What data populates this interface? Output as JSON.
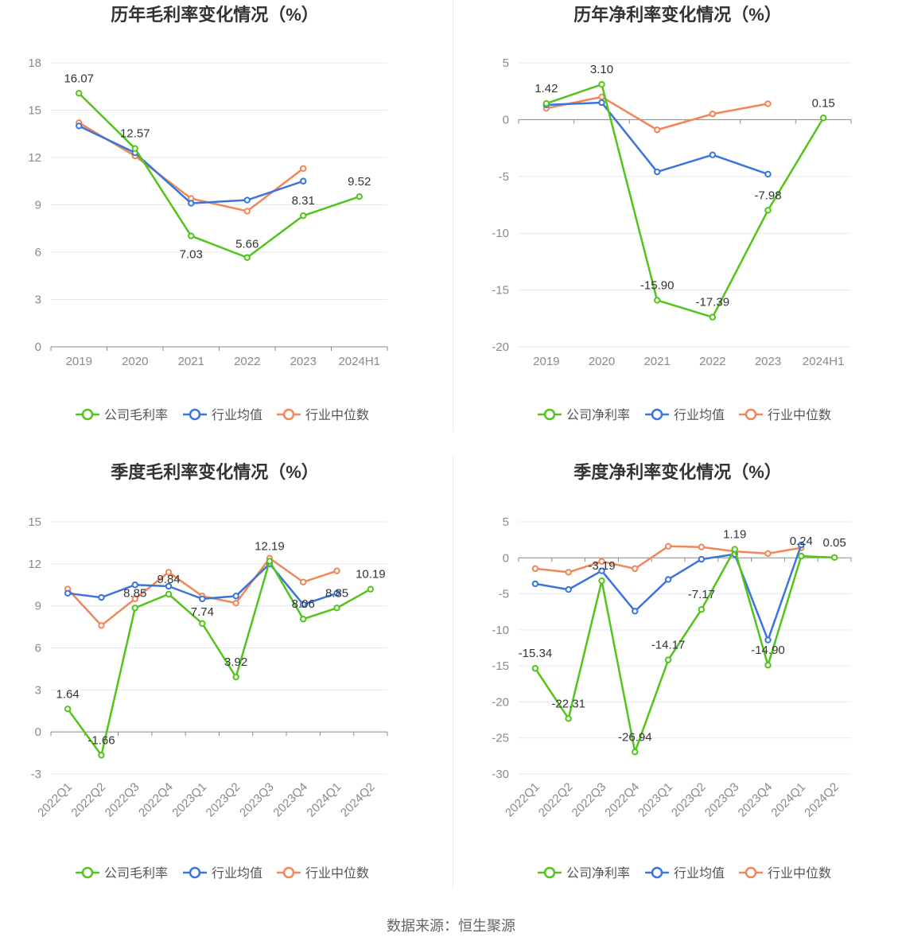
{
  "source_text": "数据来源：恒生聚源",
  "colors": {
    "company": "#52c41a",
    "avg": "#3b74db",
    "median": "#f0865a",
    "grid": "#e6e9f0",
    "axis": "#888888"
  },
  "chart_data": [
    {
      "type": "line",
      "title": "历年毛利率变化情况（%）",
      "categories": [
        "2019",
        "2020",
        "2021",
        "2022",
        "2023",
        "2024H1"
      ],
      "ylim": [
        0,
        18
      ],
      "yticks": [
        0,
        3,
        6,
        9,
        12,
        15,
        18
      ],
      "rotate_x": false,
      "legend_position": "bottom",
      "series": [
        {
          "name": "公司毛利率",
          "key": "company",
          "values": [
            16.07,
            12.57,
            7.03,
            5.66,
            8.31,
            9.52
          ],
          "labels": true
        },
        {
          "name": "行业均值",
          "key": "avg",
          "values": [
            14.0,
            12.3,
            9.1,
            9.3,
            10.5,
            null
          ],
          "labels": false
        },
        {
          "name": "行业中位数",
          "key": "median",
          "values": [
            14.2,
            12.1,
            9.4,
            8.6,
            11.3,
            null
          ],
          "labels": false
        }
      ]
    },
    {
      "type": "line",
      "title": "历年净利率变化情况（%）",
      "categories": [
        "2019",
        "2020",
        "2021",
        "2022",
        "2023",
        "2024H1"
      ],
      "ylim": [
        -20,
        5
      ],
      "yticks": [
        -20,
        -15,
        -10,
        -5,
        0,
        5
      ],
      "rotate_x": false,
      "legend_position": "bottom",
      "series": [
        {
          "name": "公司净利率",
          "key": "company",
          "values": [
            1.42,
            3.1,
            -15.9,
            -17.39,
            -7.98,
            0.15
          ],
          "labels": true
        },
        {
          "name": "行业均值",
          "key": "avg",
          "values": [
            1.3,
            1.5,
            -4.6,
            -3.1,
            -4.8,
            null
          ],
          "labels": false
        },
        {
          "name": "行业中位数",
          "key": "median",
          "values": [
            1.0,
            2.0,
            -0.9,
            0.5,
            1.4,
            null
          ],
          "labels": false
        }
      ]
    },
    {
      "type": "line",
      "title": "季度毛利率变化情况（%）",
      "categories": [
        "2022Q1",
        "2022Q2",
        "2022Q3",
        "2022Q4",
        "2023Q1",
        "2023Q2",
        "2023Q3",
        "2023Q4",
        "2024Q1",
        "2024Q2"
      ],
      "ylim": [
        -3,
        15
      ],
      "yticks": [
        -3,
        0,
        3,
        6,
        9,
        12,
        15
      ],
      "rotate_x": true,
      "legend_position": "bottom",
      "series": [
        {
          "name": "公司毛利率",
          "key": "company",
          "values": [
            1.64,
            -1.66,
            8.85,
            9.84,
            7.74,
            3.92,
            12.19,
            8.06,
            8.85,
            10.19
          ],
          "labels": true
        },
        {
          "name": "行业均值",
          "key": "avg",
          "values": [
            9.9,
            9.6,
            10.5,
            10.4,
            9.5,
            9.7,
            12.0,
            9.1,
            9.9,
            null
          ],
          "labels": false
        },
        {
          "name": "行业中位数",
          "key": "median",
          "values": [
            10.2,
            7.6,
            9.5,
            11.4,
            9.7,
            9.2,
            12.4,
            10.7,
            11.5,
            null
          ],
          "labels": false
        }
      ]
    },
    {
      "type": "line",
      "title": "季度净利率变化情况（%）",
      "categories": [
        "2022Q1",
        "2022Q2",
        "2022Q3",
        "2022Q4",
        "2023Q1",
        "2023Q2",
        "2023Q3",
        "2023Q4",
        "2024Q1",
        "2024Q2"
      ],
      "ylim": [
        -30,
        5
      ],
      "yticks": [
        -30,
        -25,
        -20,
        -15,
        -10,
        -5,
        0,
        5
      ],
      "rotate_x": true,
      "legend_position": "bottom",
      "series": [
        {
          "name": "公司净利率",
          "key": "company",
          "values": [
            -15.34,
            -22.31,
            -3.19,
            -26.94,
            -14.17,
            -7.17,
            1.19,
            -14.9,
            0.24,
            0.05
          ],
          "labels": true
        },
        {
          "name": "行业均值",
          "key": "avg",
          "values": [
            -3.6,
            -4.4,
            -1.8,
            -7.4,
            -3.0,
            -0.2,
            0.5,
            -11.4,
            1.8,
            null
          ],
          "labels": false
        },
        {
          "name": "行业中位数",
          "key": "median",
          "values": [
            -1.5,
            -2.0,
            -0.5,
            -1.5,
            1.6,
            1.5,
            0.9,
            0.6,
            1.4,
            null
          ],
          "labels": false
        }
      ]
    }
  ]
}
